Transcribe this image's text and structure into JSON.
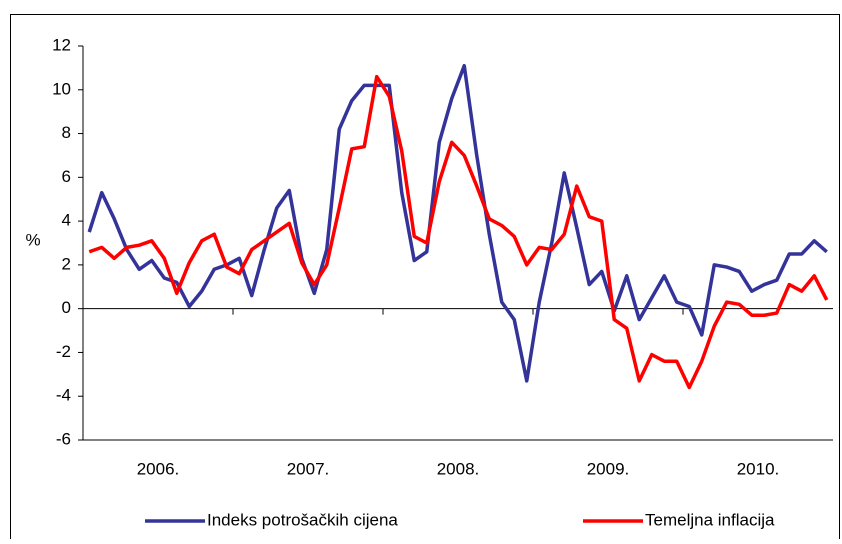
{
  "chart_data": {
    "type": "line",
    "ylabel": "%",
    "categories": [
      "2006.",
      null,
      null,
      null,
      null,
      null,
      null,
      null,
      null,
      null,
      null,
      null,
      "2007.",
      null,
      null,
      null,
      null,
      null,
      null,
      null,
      null,
      null,
      null,
      null,
      "2008.",
      null,
      null,
      null,
      null,
      null,
      null,
      null,
      null,
      null,
      null,
      null,
      "2009.",
      null,
      null,
      null,
      null,
      null,
      null,
      null,
      null,
      null,
      null,
      null,
      "2010.",
      null,
      null,
      null,
      null,
      null,
      null,
      null,
      null,
      null,
      null,
      null
    ],
    "series": [
      {
        "name": "Indeks potrošačkih cijena",
        "color": "#333399",
        "values": [
          3.5,
          5.3,
          4.1,
          2.7,
          1.8,
          2.2,
          1.4,
          1.2,
          0.1,
          0.8,
          1.8,
          2.0,
          2.3,
          0.6,
          2.7,
          4.6,
          5.4,
          2.3,
          0.7,
          2.7,
          8.2,
          9.5,
          10.2,
          10.2,
          10.2,
          5.3,
          2.2,
          2.6,
          7.6,
          9.6,
          11.1,
          7.0,
          3.4,
          0.3,
          -0.5,
          -3.3,
          0.3,
          3.0,
          6.2,
          3.7,
          1.1,
          1.7,
          -0.1,
          1.5,
          -0.5,
          0.5,
          1.5,
          0.3,
          0.1,
          -1.2,
          2.0,
          1.9,
          1.7,
          0.8,
          1.1,
          1.3,
          2.5,
          2.5,
          3.1,
          2.6
        ]
      },
      {
        "name": "Temeljna inflacija",
        "color": "#ff0000",
        "values": [
          2.6,
          2.8,
          2.3,
          2.8,
          2.9,
          3.1,
          2.3,
          0.7,
          2.1,
          3.1,
          3.4,
          1.9,
          1.6,
          2.7,
          3.1,
          3.5,
          3.9,
          2.1,
          1.1,
          2.0,
          4.6,
          7.3,
          7.4,
          10.6,
          9.7,
          7.2,
          3.3,
          3.0,
          5.8,
          7.6,
          7.0,
          5.6,
          4.1,
          3.8,
          3.3,
          2.0,
          2.8,
          2.7,
          3.4,
          5.6,
          4.2,
          4.0,
          -0.5,
          -0.9,
          -3.3,
          -2.1,
          -2.4,
          -2.4,
          -3.6,
          -2.4,
          -0.8,
          0.3,
          0.2,
          -0.3,
          -0.3,
          -0.2,
          1.1,
          0.8,
          1.5,
          0.4
        ]
      }
    ],
    "ylim": [
      -6,
      12
    ],
    "yticks": [
      -6,
      -4,
      -2,
      0,
      2,
      4,
      6,
      8,
      10,
      12
    ],
    "legend": "bottom"
  }
}
